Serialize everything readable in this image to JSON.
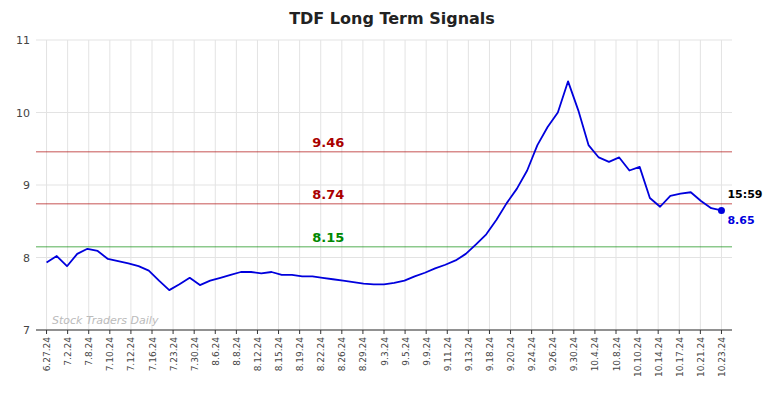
{
  "chart_data": {
    "type": "line",
    "title": "TDF Long Term Signals",
    "ylim": [
      7,
      11
    ],
    "yticks": [
      7,
      8,
      9,
      10,
      11
    ],
    "xlim": [
      -0.5,
      32.5
    ],
    "xticks": [
      {
        "value": 0,
        "label": "6.27.24"
      },
      {
        "value": 1,
        "label": "7.2.24"
      },
      {
        "value": 2,
        "label": "7.8.24"
      },
      {
        "value": 3,
        "label": "7.10.24"
      },
      {
        "value": 4,
        "label": "7.12.24"
      },
      {
        "value": 5,
        "label": "7.16.24"
      },
      {
        "value": 6,
        "label": "7.23.24"
      },
      {
        "value": 7,
        "label": "7.30.24"
      },
      {
        "value": 8,
        "label": "8.6.24"
      },
      {
        "value": 9,
        "label": "8.8.24"
      },
      {
        "value": 10,
        "label": "8.12.24"
      },
      {
        "value": 11,
        "label": "8.15.24"
      },
      {
        "value": 12,
        "label": "8.19.24"
      },
      {
        "value": 13,
        "label": "8.22.24"
      },
      {
        "value": 14,
        "label": "8.26.24"
      },
      {
        "value": 15,
        "label": "8.29.24"
      },
      {
        "value": 16,
        "label": "9.3.24"
      },
      {
        "value": 17,
        "label": "9.5.24"
      },
      {
        "value": 18,
        "label": "9.9.24"
      },
      {
        "value": 19,
        "label": "9.11.24"
      },
      {
        "value": 20,
        "label": "9.13.24"
      },
      {
        "value": 21,
        "label": "9.18.24"
      },
      {
        "value": 22,
        "label": "9.20.24"
      },
      {
        "value": 23,
        "label": "9.24.24"
      },
      {
        "value": 24,
        "label": "9.26.24"
      },
      {
        "value": 25,
        "label": "9.30.24"
      },
      {
        "value": 26,
        "label": "10.4.24"
      },
      {
        "value": 27,
        "label": "10.8.24"
      },
      {
        "value": 28,
        "label": "10.10.24"
      },
      {
        "value": 29,
        "label": "10.14.24"
      },
      {
        "value": 30,
        "label": "10.17.24"
      },
      {
        "value": 31,
        "label": "10.21.24"
      },
      {
        "value": 32,
        "label": "10.23.24"
      }
    ],
    "grid": true,
    "reference_lines": [
      {
        "value": 9.46,
        "label": "9.46",
        "color": "#aa0000"
      },
      {
        "value": 8.74,
        "label": "8.74",
        "color": "#aa0000"
      },
      {
        "value": 8.15,
        "label": "8.15",
        "color": "#008800"
      }
    ],
    "end_label": "15:59",
    "watermark": "Stock Traders Daily",
    "series": [
      {
        "color": "#0000dd",
        "values": [
          7.93,
          8.02,
          7.88,
          8.05,
          8.12,
          8.09,
          7.98,
          7.95,
          7.92,
          7.88,
          7.82,
          7.68,
          7.55,
          7.63,
          7.72,
          7.62,
          7.68,
          7.72,
          7.76,
          7.8,
          7.8,
          7.78,
          7.8,
          7.76,
          7.76,
          7.74,
          7.74,
          7.72,
          7.7,
          7.68,
          7.66,
          7.64,
          7.63,
          7.63,
          7.65,
          7.68,
          7.74,
          7.79,
          7.85,
          7.9,
          7.96,
          8.05,
          8.18,
          8.32,
          8.52,
          8.75,
          8.95,
          9.2,
          9.55,
          9.8,
          10.0,
          10.43,
          10.03,
          9.55,
          9.38,
          9.32,
          9.38,
          9.2,
          9.25,
          8.82,
          8.7,
          8.85,
          8.88,
          8.9,
          8.78,
          8.68,
          8.65
        ],
        "value_labels": [
          null,
          null,
          null,
          null,
          null,
          null,
          null,
          null,
          null,
          null,
          null,
          null,
          null,
          null,
          null,
          null,
          null,
          null,
          null,
          null,
          null,
          null,
          null,
          null,
          null,
          null,
          null,
          null,
          null,
          null,
          null,
          null,
          null,
          null,
          null,
          null,
          null,
          null,
          null,
          null,
          null,
          null,
          null,
          null,
          null,
          null,
          null,
          null,
          null,
          null,
          null,
          null,
          null,
          null,
          null,
          null,
          null,
          null,
          null,
          null,
          null,
          null,
          null,
          null,
          null,
          null,
          "8.65"
        ]
      }
    ]
  }
}
